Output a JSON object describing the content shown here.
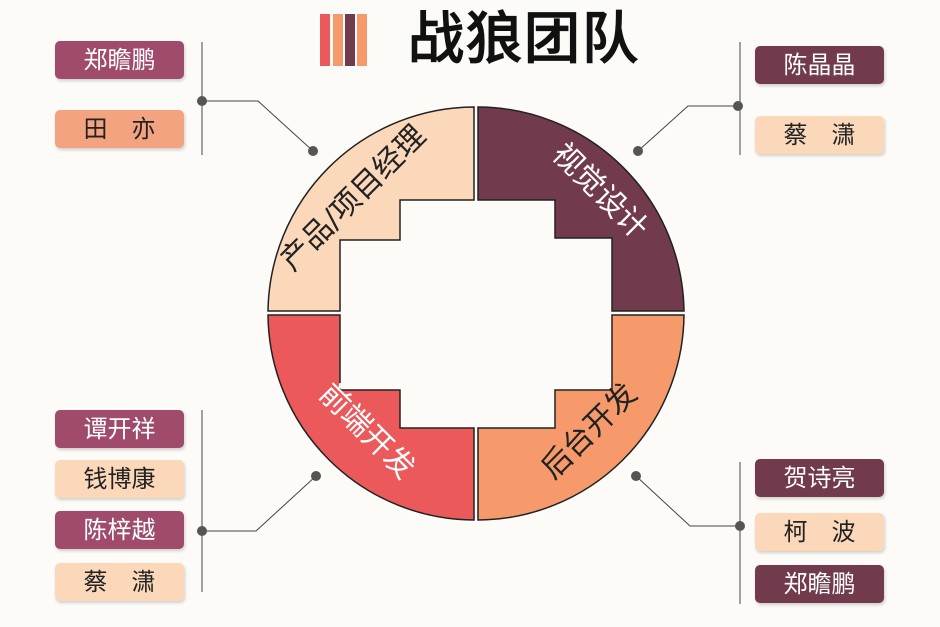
{
  "title": "战狼团队",
  "colors": {
    "product": "#fcd8bb",
    "visual": "#723a4d",
    "frontend": "#ec595a",
    "backend": "#f79a6b"
  },
  "segments": {
    "product": "产品/项目经理",
    "visual": "视觉设计",
    "frontend": "前端开发",
    "backend": "后台开发"
  },
  "groups": {
    "product": [
      "郑瞻鹏",
      "田　亦"
    ],
    "visual": [
      "陈晶晶",
      "蔡　潇"
    ],
    "frontend": [
      "谭开祥",
      "钱博康",
      "陈梓越",
      "蔡　潇"
    ],
    "backend": [
      "贺诗亮",
      "柯　波",
      "郑瞻鹏"
    ]
  }
}
